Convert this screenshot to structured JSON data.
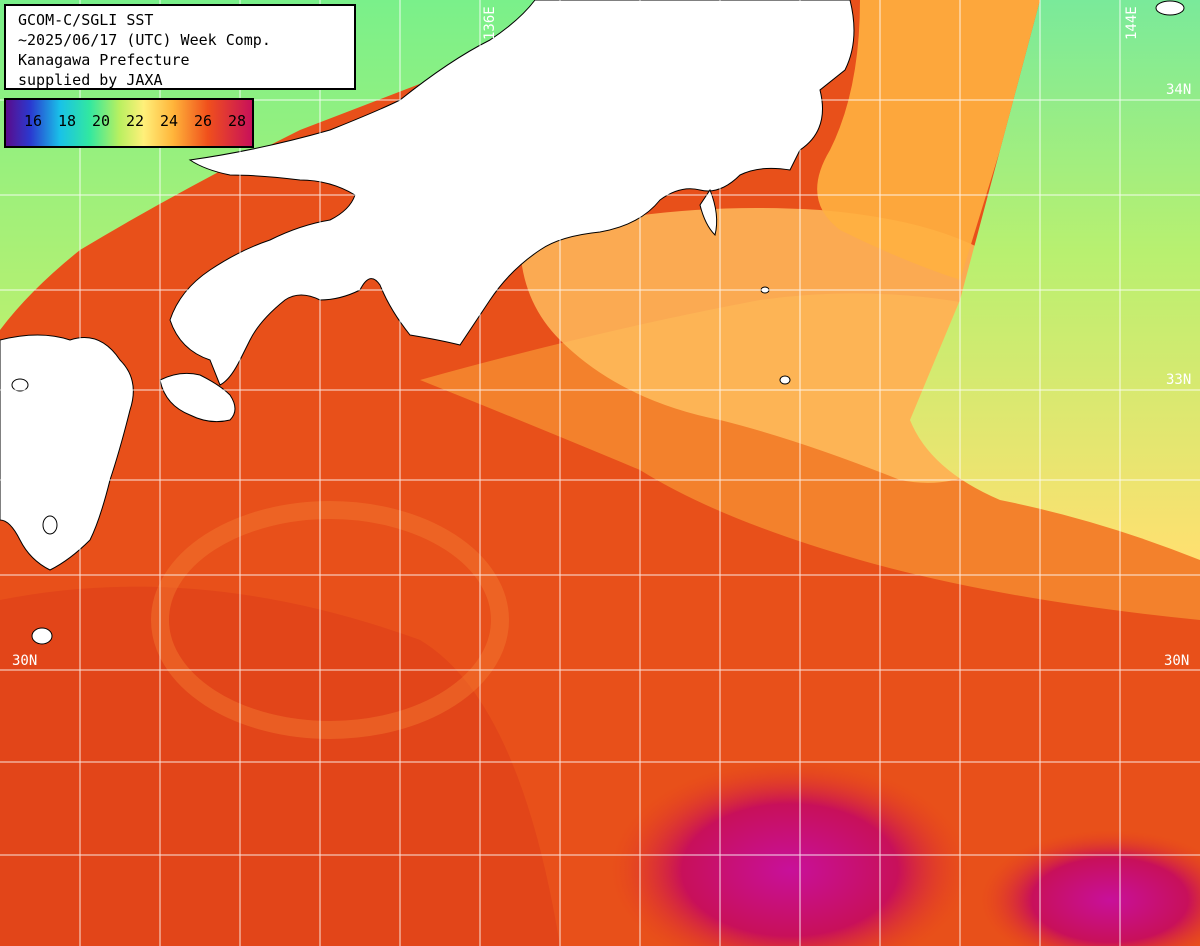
{
  "header": {
    "line1": "GCOM-C/SGLI SST",
    "line2": "~2025/06/17 (UTC) Week Comp.",
    "line3": "Kanagawa Prefecture",
    "line4": "supplied by JAXA"
  },
  "legend": {
    "labels": [
      "16",
      "18",
      "20",
      "22",
      "24",
      "26",
      "28"
    ],
    "colors": [
      "#5a0c8c",
      "#2a3ad0",
      "#19c2e8",
      "#32e8a0",
      "#b8f060",
      "#fff07a",
      "#ffb43a",
      "#f0501c",
      "#c8105a"
    ]
  },
  "grid_labels": {
    "lon_136": "136E",
    "lon_144": "144E",
    "lat_34": "34N",
    "lat_33": "33N",
    "lat_30_left": "30N",
    "lat_30_right": "30N"
  },
  "colors": {
    "land": "#ffffff",
    "coast": "#000000",
    "grid": "#ffffff",
    "warm_sea": "#e8501a",
    "hot_sea": "#c8105a",
    "cool_sea": "#7af08a",
    "mid_sea": "#ffd060"
  }
}
